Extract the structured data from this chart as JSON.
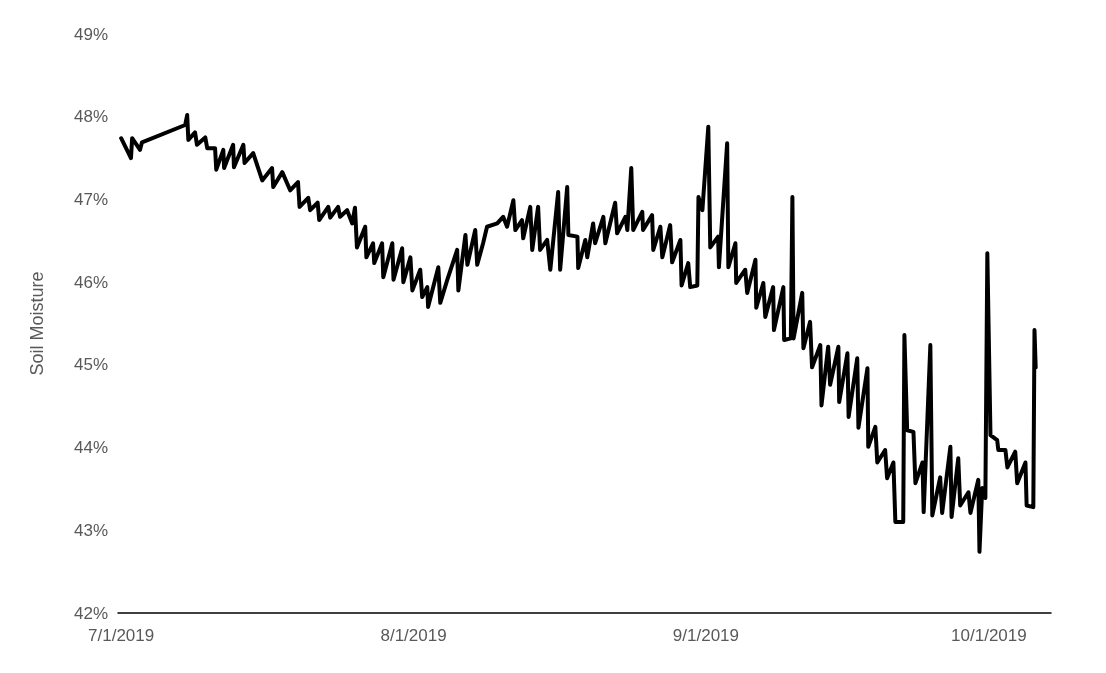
{
  "chart_data": {
    "type": "line",
    "ylabel": "Soil Moisture",
    "xlim": [
      "2019-06-30T16:00",
      "2019-10-07T14:00"
    ],
    "xticks": [
      {
        "value": "2019-07-01",
        "label": "7/1/2019"
      },
      {
        "value": "2019-08-01",
        "label": "8/1/2019"
      },
      {
        "value": "2019-09-01",
        "label": "9/1/2019"
      },
      {
        "value": "2019-10-01",
        "label": "10/1/2019"
      }
    ],
    "ylim": [
      42,
      49
    ],
    "yticks": [
      {
        "value": 42,
        "label": "42%"
      },
      {
        "value": 43,
        "label": "43%"
      },
      {
        "value": 44,
        "label": "44%"
      },
      {
        "value": 45,
        "label": "45%"
      },
      {
        "value": 46,
        "label": "46%"
      },
      {
        "value": 47,
        "label": "47%"
      },
      {
        "value": 48,
        "label": "48%"
      },
      {
        "value": 49,
        "label": "49%"
      }
    ],
    "grid": false,
    "marker": "none",
    "line_style": "solid",
    "series": [
      {
        "color": "#000000",
        "x": [
          "2019-07-01T00:00",
          "2019-07-02T01:00",
          "2019-07-02T04:00",
          "2019-07-03T00:00",
          "2019-07-03T05:00",
          "2019-07-07T19:00",
          "2019-07-08T00:00",
          "2019-07-08T03:00",
          "2019-07-08T20:00",
          "2019-07-09T01:00",
          "2019-07-09T22:00",
          "2019-07-10T03:00",
          "2019-07-10T23:00",
          "2019-07-11T02:00",
          "2019-07-11T20:00",
          "2019-07-11T22:00",
          "2019-07-12T21:00",
          "2019-07-12T23:00",
          "2019-07-13T23:00",
          "2019-07-14T02:00",
          "2019-07-15T00:00",
          "2019-07-15T23:00",
          "2019-07-17T00:00",
          "2019-07-17T03:00",
          "2019-07-18T02:00",
          "2019-07-18T22:00",
          "2019-07-19T18:00",
          "2019-07-19T22:00",
          "2019-07-20T20:00",
          "2019-07-21T01:00",
          "2019-07-21T20:00",
          "2019-07-22T00:00",
          "2019-07-22T23:00",
          "2019-07-23T04:00",
          "2019-07-24T00:00",
          "2019-07-24T05:00",
          "2019-07-24T23:00",
          "2019-07-25T12:00",
          "2019-07-25T19:00",
          "2019-07-26T00:00",
          "2019-07-26T21:00",
          "2019-07-27T00:00",
          "2019-07-27T17:00",
          "2019-07-27T20:00",
          "2019-07-28T16:00",
          "2019-07-28T19:00",
          "2019-07-29T18:00",
          "2019-07-29T21:00",
          "2019-07-30T19:00",
          "2019-07-30T22:00",
          "2019-07-31T16:00",
          "2019-07-31T21:00",
          "2019-08-01T17:00",
          "2019-08-01T22:00",
          "2019-08-02T11:00",
          "2019-08-02T13:00",
          "2019-08-03T15:00",
          "2019-08-03T20:00",
          "2019-08-04T14:00",
          "2019-08-05T15:00",
          "2019-08-05T18:00",
          "2019-08-06T12:00",
          "2019-08-06T17:00",
          "2019-08-07T13:00",
          "2019-08-07T18:00",
          "2019-08-08T09:00",
          "2019-08-08T19:00",
          "2019-08-09T21:00",
          "2019-08-10T12:00",
          "2019-08-10T22:00",
          "2019-08-11T14:00",
          "2019-08-11T19:00",
          "2019-08-12T12:00",
          "2019-08-12T15:00",
          "2019-08-13T09:00",
          "2019-08-13T14:00",
          "2019-08-14T05:00",
          "2019-08-14T10:00",
          "2019-08-15T04:00",
          "2019-08-15T12:00",
          "2019-08-16T08:00",
          "2019-08-16T13:00",
          "2019-08-17T07:00",
          "2019-08-17T10:00",
          "2019-08-18T09:00",
          "2019-08-18T11:00",
          "2019-08-19T05:00",
          "2019-08-19T10:00",
          "2019-08-20T01:00",
          "2019-08-20T06:00",
          "2019-08-21T03:00",
          "2019-08-21T08:00",
          "2019-08-22T09:00",
          "2019-08-22T14:00",
          "2019-08-23T11:00",
          "2019-08-23T16:00",
          "2019-08-24T02:00",
          "2019-08-24T07:00",
          "2019-08-25T06:00",
          "2019-08-25T08:00",
          "2019-08-26T07:00",
          "2019-08-26T10:00",
          "2019-08-27T04:00",
          "2019-08-27T09:00",
          "2019-08-28T05:00",
          "2019-08-28T10:00",
          "2019-08-29T07:00",
          "2019-08-29T10:00",
          "2019-08-30T03:00",
          "2019-08-30T08:00",
          "2019-08-31T02:00",
          "2019-08-31T05:00",
          "2019-08-31T15:00",
          "2019-09-01T06:00",
          "2019-09-01T11:00",
          "2019-09-02T07:00",
          "2019-09-02T09:00",
          "2019-09-03T06:00",
          "2019-09-03T09:00",
          "2019-09-04T03:00",
          "2019-09-04T05:00",
          "2019-09-05T04:00",
          "2019-09-05T09:00",
          "2019-09-06T06:00",
          "2019-09-06T08:00",
          "2019-09-07T02:00",
          "2019-09-07T07:00",
          "2019-09-08T03:00",
          "2019-09-08T05:00",
          "2019-09-09T05:00",
          "2019-09-09T07:00",
          "2019-09-10T00:00",
          "2019-09-10T04:00",
          "2019-09-10T07:00",
          "2019-09-11T05:00",
          "2019-09-11T08:00",
          "2019-09-12T01:00",
          "2019-09-12T06:00",
          "2019-09-13T03:00",
          "2019-09-13T06:00",
          "2019-09-13T23:00",
          "2019-09-14T04:00",
          "2019-09-15T01:00",
          "2019-09-15T03:00",
          "2019-09-16T00:00",
          "2019-09-16T03:00",
          "2019-09-17T01:00",
          "2019-09-17T04:00",
          "2019-09-18T03:00",
          "2019-09-18T05:00",
          "2019-09-18T23:00",
          "2019-09-19T04:00",
          "2019-09-20T00:00",
          "2019-09-20T05:00",
          "2019-09-20T21:00",
          "2019-09-21T02:00",
          "2019-09-21T22:00",
          "2019-09-22T01:00",
          "2019-09-22T08:00",
          "2019-09-23T00:00",
          "2019-09-23T05:00",
          "2019-09-23T23:00",
          "2019-09-24T02:00",
          "2019-09-24T19:00",
          "2019-09-25T00:00",
          "2019-09-25T20:00",
          "2019-09-26T01:00",
          "2019-09-26T22:00",
          "2019-09-27T01:00",
          "2019-09-27T18:00",
          "2019-09-27T23:00",
          "2019-09-28T20:00",
          "2019-09-29T01:00",
          "2019-09-29T21:00",
          "2019-09-30T00:00",
          "2019-09-30T07:00",
          "2019-09-30T15:00",
          "2019-09-30T20:00",
          "2019-10-01T04:00",
          "2019-10-01T21:00",
          "2019-10-02T00:00",
          "2019-10-02T18:00",
          "2019-10-02T23:00",
          "2019-10-03T19:00",
          "2019-10-04T00:00",
          "2019-10-04T21:00",
          "2019-10-05T00:00",
          "2019-10-05T17:00",
          "2019-10-05T20:00",
          "2019-10-05T23:00"
        ],
        "values": [
          47.74,
          47.5,
          47.74,
          47.6,
          47.69,
          47.9,
          48.02,
          47.72,
          47.81,
          47.66,
          47.75,
          47.62,
          47.62,
          47.36,
          47.6,
          47.38,
          47.66,
          47.39,
          47.66,
          47.44,
          47.56,
          47.23,
          47.38,
          47.15,
          47.33,
          47.11,
          47.21,
          46.91,
          47.02,
          46.87,
          46.96,
          46.75,
          46.91,
          46.78,
          46.91,
          46.79,
          46.87,
          46.71,
          46.9,
          46.42,
          46.67,
          46.3,
          46.47,
          46.23,
          46.47,
          46.06,
          46.47,
          46.03,
          46.41,
          46.0,
          46.3,
          45.9,
          46.15,
          45.82,
          45.94,
          45.7,
          46.18,
          45.75,
          46.03,
          46.39,
          45.9,
          46.57,
          46.21,
          46.63,
          46.21,
          46.47,
          46.67,
          46.71,
          46.79,
          46.67,
          46.99,
          46.63,
          46.75,
          46.53,
          46.91,
          46.39,
          46.91,
          46.39,
          46.51,
          46.15,
          47.09,
          46.15,
          47.15,
          46.57,
          46.55,
          46.17,
          46.51,
          46.3,
          46.71,
          46.47,
          46.79,
          46.47,
          46.96,
          46.59,
          46.79,
          46.63,
          47.38,
          46.63,
          46.85,
          46.63,
          46.81,
          46.39,
          46.67,
          46.3,
          46.69,
          46.24,
          46.51,
          45.96,
          46.23,
          45.94,
          45.96,
          47.03,
          46.87,
          47.88,
          46.42,
          46.55,
          46.18,
          47.68,
          46.18,
          46.47,
          45.99,
          46.15,
          45.87,
          46.27,
          45.69,
          45.99,
          45.58,
          45.94,
          45.42,
          45.94,
          45.3,
          45.32,
          47.03,
          45.32,
          45.87,
          45.2,
          45.52,
          44.97,
          45.24,
          44.51,
          45.22,
          44.76,
          45.22,
          44.55,
          45.14,
          44.37,
          45.08,
          44.24,
          44.96,
          44.01,
          44.25,
          43.82,
          43.97,
          43.63,
          43.82,
          43.1,
          43.1,
          45.36,
          44.21,
          44.19,
          43.57,
          43.82,
          43.22,
          45.24,
          43.18,
          43.64,
          43.21,
          44.01,
          43.16,
          43.87,
          43.3,
          43.46,
          43.21,
          43.61,
          42.74,
          43.51,
          43.39,
          46.35,
          44.15,
          44.09,
          43.97,
          43.97,
          43.76,
          43.95,
          43.57,
          43.82,
          43.3,
          43.28,
          45.42,
          44.97
        ]
      }
    ]
  }
}
